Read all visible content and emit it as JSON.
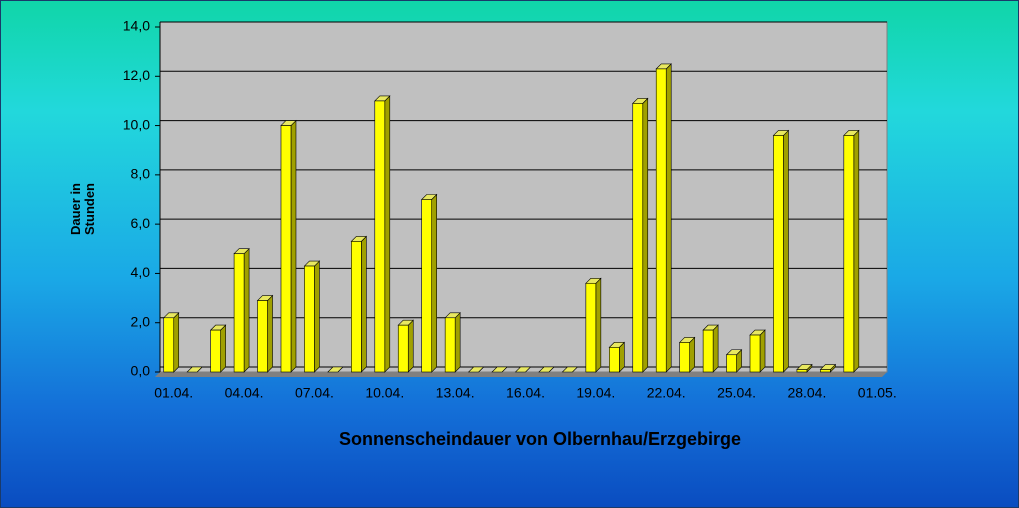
{
  "chart_data": {
    "type": "bar",
    "title": "Sonnenscheindauer von Olbernhau/Erzgebirge",
    "y_label": "Dauer in Stunden",
    "categories": [
      "01.04.",
      null,
      null,
      "04.04.",
      null,
      null,
      "07.04.",
      null,
      null,
      "10.04.",
      null,
      null,
      "13.04.",
      null,
      null,
      "16.04.",
      null,
      null,
      "19.04.",
      null,
      null,
      "22.04.",
      null,
      null,
      "25.04.",
      null,
      null,
      "28.04.",
      null,
      null,
      "01.05."
    ],
    "values": [
      2.2,
      0,
      1.7,
      4.8,
      2.9,
      10.0,
      4.3,
      0,
      5.3,
      11.0,
      1.9,
      7.0,
      2.2,
      0,
      0,
      0,
      0,
      0,
      3.6,
      1.0,
      10.9,
      12.3,
      1.2,
      1.7,
      0.7,
      1.5,
      9.6,
      0.1,
      0.1,
      9.6,
      null
    ],
    "color": "#ffff00",
    "ylim": [
      0,
      14
    ],
    "yticks": [
      {
        "value": 0,
        "label": "0,0"
      },
      {
        "value": 2,
        "label": "2,0"
      },
      {
        "value": 4,
        "label": "4,0"
      },
      {
        "value": 6,
        "label": "6,0"
      },
      {
        "value": 8,
        "label": "8,0"
      },
      {
        "value": 10,
        "label": "10,0"
      },
      {
        "value": 12,
        "label": "12,0"
      },
      {
        "value": 14,
        "label": "14,0"
      }
    ],
    "grid": true
  }
}
